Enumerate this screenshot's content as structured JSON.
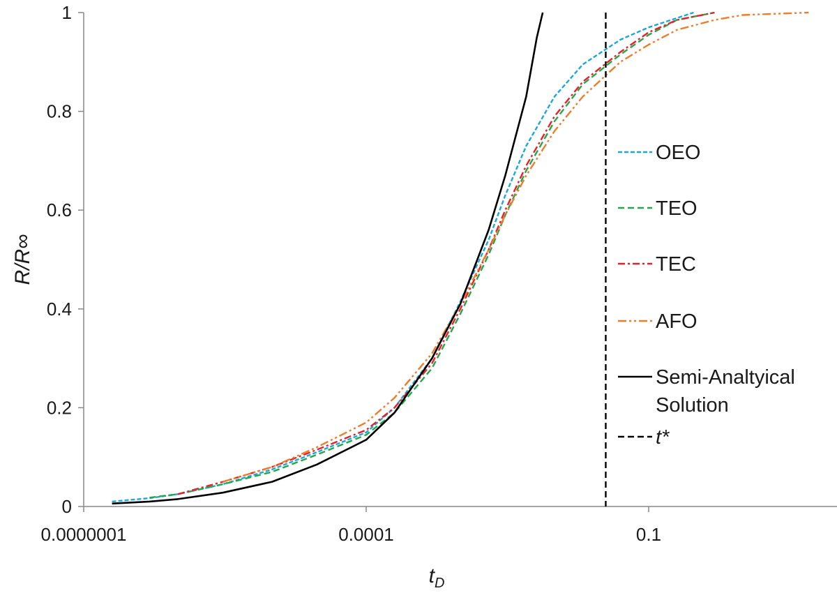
{
  "chart_data": {
    "type": "line",
    "x_scale": "log",
    "xlim": [
      1e-07,
      10
    ],
    "ylim": [
      0,
      1
    ],
    "x_ticks": [
      {
        "value": 1e-07,
        "label": "0.0000001"
      },
      {
        "value": 0.0001,
        "label": "0.0001"
      },
      {
        "value": 0.1,
        "label": "0.1"
      }
    ],
    "y_ticks": [
      {
        "value": 0,
        "label": "0"
      },
      {
        "value": 0.2,
        "label": "0.2"
      },
      {
        "value": 0.4,
        "label": "0.4"
      },
      {
        "value": 0.6,
        "label": "0.6"
      },
      {
        "value": 0.8,
        "label": "0.8"
      },
      {
        "value": 1,
        "label": "1"
      }
    ],
    "xlabel": {
      "main": "t",
      "sub": "D"
    },
    "ylabel": "R/R∞",
    "grid": false,
    "legend_position": "right",
    "series": [
      {
        "name": "OEO",
        "color": "#1aa7dc",
        "dash": "dotted-short",
        "points": [
          [
            2e-07,
            0.01
          ],
          [
            5e-07,
            0.017
          ],
          [
            1e-06,
            0.025
          ],
          [
            3e-06,
            0.045
          ],
          [
            1e-05,
            0.075
          ],
          [
            3e-05,
            0.11
          ],
          [
            0.0001,
            0.15
          ],
          [
            0.0002,
            0.2
          ],
          [
            0.0005,
            0.3
          ],
          [
            0.001,
            0.415
          ],
          [
            0.002,
            0.54
          ],
          [
            0.003,
            0.63
          ],
          [
            0.005,
            0.73
          ],
          [
            0.01,
            0.83
          ],
          [
            0.02,
            0.895
          ],
          [
            0.05,
            0.945
          ],
          [
            0.1,
            0.97
          ],
          [
            0.3,
            1.0
          ]
        ]
      },
      {
        "name": "TEO",
        "color": "#22a84a",
        "dash": "dashed",
        "points": [
          [
            5e-07,
            0.018
          ],
          [
            1e-06,
            0.025
          ],
          [
            3e-06,
            0.045
          ],
          [
            1e-05,
            0.07
          ],
          [
            3e-05,
            0.105
          ],
          [
            0.0001,
            0.145
          ],
          [
            0.0002,
            0.19
          ],
          [
            0.0005,
            0.28
          ],
          [
            0.001,
            0.39
          ],
          [
            0.002,
            0.51
          ],
          [
            0.003,
            0.59
          ],
          [
            0.005,
            0.68
          ],
          [
            0.01,
            0.78
          ],
          [
            0.02,
            0.855
          ],
          [
            0.05,
            0.915
          ],
          [
            0.1,
            0.955
          ],
          [
            0.2,
            0.985
          ],
          [
            0.5,
            1.0
          ]
        ]
      },
      {
        "name": "TEC",
        "color": "#e8202a",
        "dash": "dash-dot",
        "points": [
          [
            1e-06,
            0.025
          ],
          [
            3e-06,
            0.05
          ],
          [
            1e-05,
            0.08
          ],
          [
            3e-05,
            0.115
          ],
          [
            0.0001,
            0.155
          ],
          [
            0.0002,
            0.2
          ],
          [
            0.0005,
            0.29
          ],
          [
            0.001,
            0.4
          ],
          [
            0.002,
            0.52
          ],
          [
            0.003,
            0.6
          ],
          [
            0.005,
            0.69
          ],
          [
            0.01,
            0.79
          ],
          [
            0.02,
            0.86
          ],
          [
            0.05,
            0.92
          ],
          [
            0.1,
            0.96
          ],
          [
            0.2,
            0.985
          ],
          [
            0.5,
            1.0
          ]
        ]
      },
      {
        "name": "AFO",
        "color": "#ee7d2b",
        "dash": "dash-dot-dot",
        "points": [
          [
            3e-06,
            0.05
          ],
          [
            1e-05,
            0.08
          ],
          [
            3e-05,
            0.12
          ],
          [
            0.0001,
            0.17
          ],
          [
            0.0002,
            0.22
          ],
          [
            0.0005,
            0.31
          ],
          [
            0.001,
            0.41
          ],
          [
            0.002,
            0.52
          ],
          [
            0.003,
            0.59
          ],
          [
            0.005,
            0.67
          ],
          [
            0.01,
            0.76
          ],
          [
            0.02,
            0.83
          ],
          [
            0.05,
            0.9
          ],
          [
            0.1,
            0.935
          ],
          [
            0.2,
            0.965
          ],
          [
            0.5,
            0.985
          ],
          [
            1,
            0.995
          ],
          [
            5,
            1.0
          ]
        ]
      },
      {
        "name": "Semi-Analtyical Solution",
        "color": "#000000",
        "dash": "solid",
        "points": [
          [
            2e-07,
            0.006
          ],
          [
            5e-07,
            0.01
          ],
          [
            1e-06,
            0.015
          ],
          [
            3e-06,
            0.028
          ],
          [
            1e-05,
            0.05
          ],
          [
            3e-05,
            0.085
          ],
          [
            0.0001,
            0.135
          ],
          [
            0.0002,
            0.19
          ],
          [
            0.0005,
            0.3
          ],
          [
            0.001,
            0.41
          ],
          [
            0.002,
            0.56
          ],
          [
            0.003,
            0.67
          ],
          [
            0.005,
            0.83
          ],
          [
            0.0065,
            0.95
          ],
          [
            0.0075,
            1.0
          ]
        ]
      }
    ],
    "reference_lines": [
      {
        "name": "t*",
        "x": 0.035,
        "color": "#000000",
        "dash": "dashed"
      }
    ]
  }
}
